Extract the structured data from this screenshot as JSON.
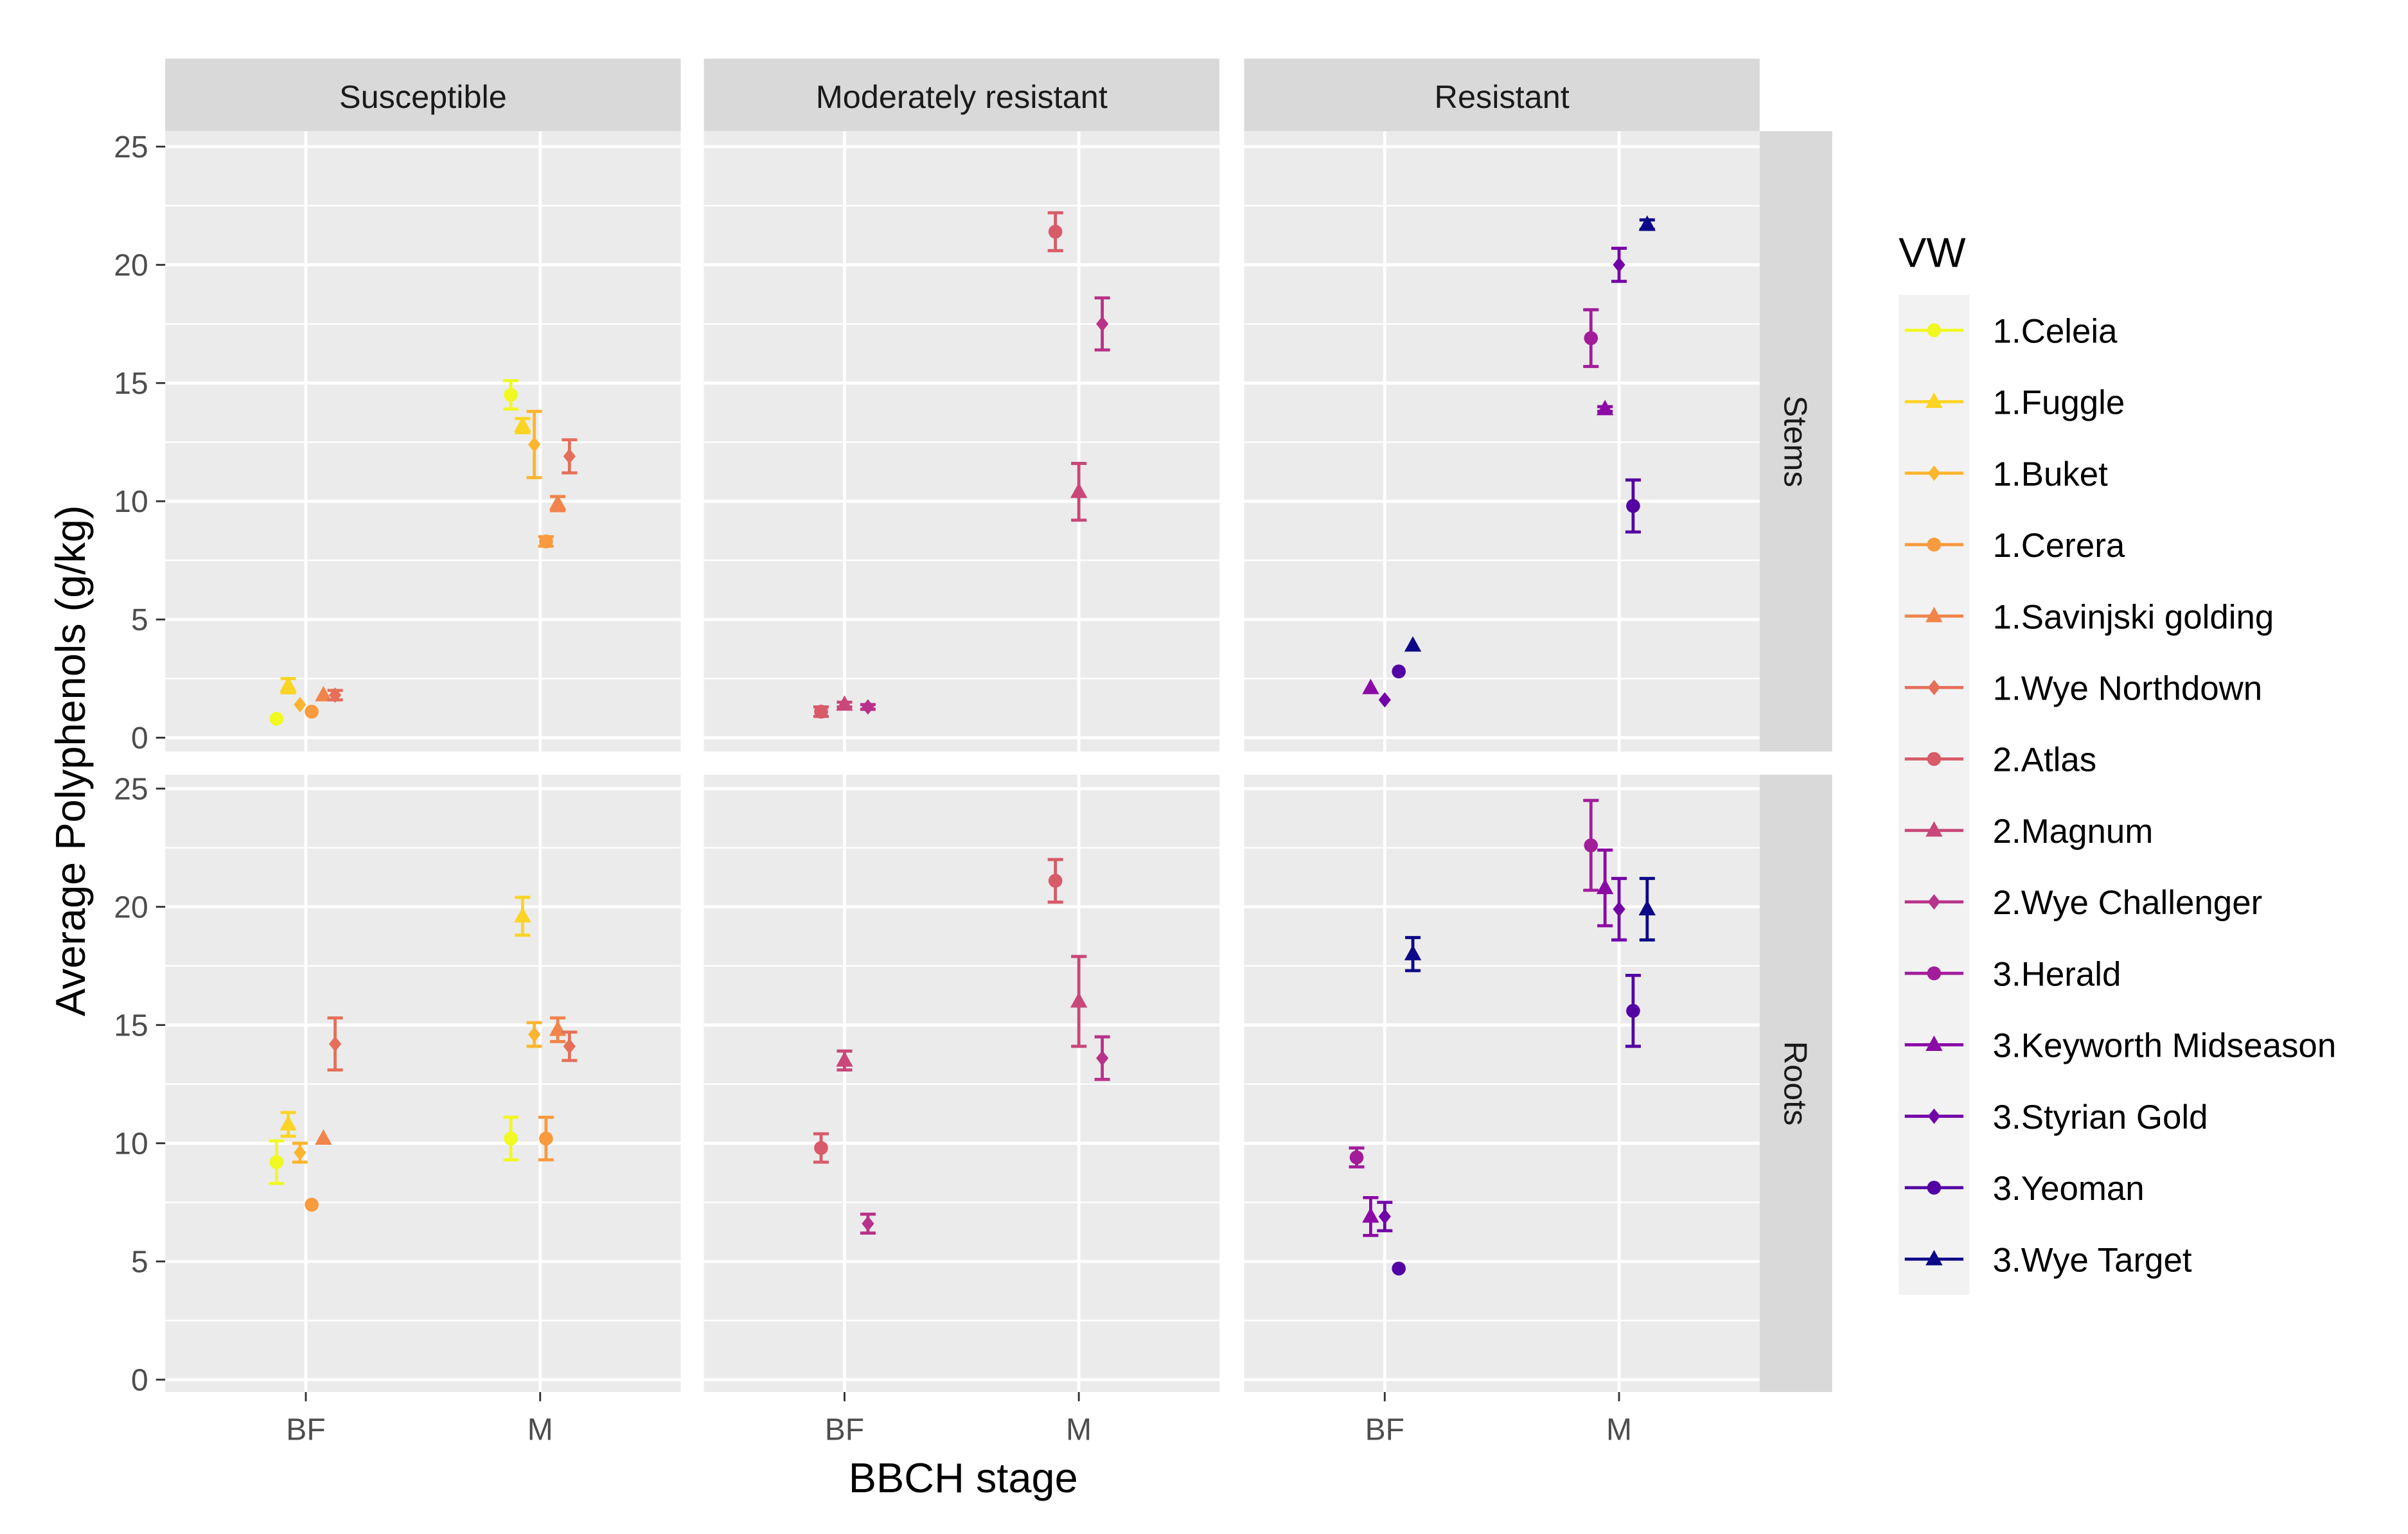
{
  "chart_data": {
    "type": "scatter",
    "xlabel": "BBCH stage",
    "ylabel": "Average Polyphenols (g/kg)",
    "x_categories": [
      "BF",
      "M"
    ],
    "ylim": [
      0,
      25
    ],
    "y_ticks": [
      0,
      5,
      10,
      15,
      20,
      25
    ],
    "grid": true,
    "columns": [
      "Susceptible",
      "Moderately resistant",
      "Resistant"
    ],
    "rows": [
      "Stems",
      "Roots"
    ],
    "legend": {
      "title": "VW",
      "placement": "right"
    },
    "series": [
      {
        "name": "1.Celeia",
        "color": "#F0F921",
        "shape": "circle"
      },
      {
        "name": "1.Fuggle",
        "color": "#FBD424",
        "shape": "triangle"
      },
      {
        "name": "1.Buket",
        "color": "#FDB52E",
        "shape": "diamond"
      },
      {
        "name": "1.Cerera",
        "color": "#F99A3E",
        "shape": "circle"
      },
      {
        "name": "1.Savinjski golding",
        "color": "#F1844B",
        "shape": "triangle"
      },
      {
        "name": "1.Wye Northdown",
        "color": "#E56F5A",
        "shape": "diamond"
      },
      {
        "name": "2.Atlas",
        "color": "#D85B69",
        "shape": "circle"
      },
      {
        "name": "2.Magnum",
        "color": "#C94779",
        "shape": "triangle"
      },
      {
        "name": "2.Wye Challenger",
        "color": "#B83289",
        "shape": "diamond"
      },
      {
        "name": "3.Herald",
        "color": "#A21D9A",
        "shape": "circle"
      },
      {
        "name": "3.Keyworth Midseason",
        "color": "#8B0AA5",
        "shape": "triangle"
      },
      {
        "name": "3.Styrian Gold",
        "color": "#7201A8",
        "shape": "diamond"
      },
      {
        "name": "3.Yeoman",
        "color": "#5302A3",
        "shape": "circle"
      },
      {
        "name": "3.Wye Target",
        "color": "#0D0887",
        "shape": "triangle"
      }
    ],
    "panels": [
      {
        "row": "Stems",
        "column": "Susceptible",
        "series": [
          0,
          1,
          2,
          3,
          4,
          5
        ],
        "points": [
          {
            "s": 0,
            "x": "BF",
            "y": 0.8,
            "err": 0
          },
          {
            "s": 1,
            "x": "BF",
            "y": 2.2,
            "err": 0.3
          },
          {
            "s": 2,
            "x": "BF",
            "y": 1.4,
            "err": 0
          },
          {
            "s": 3,
            "x": "BF",
            "y": 1.1,
            "err": 0
          },
          {
            "s": 4,
            "x": "BF",
            "y": 1.8,
            "err": 0
          },
          {
            "s": 5,
            "x": "BF",
            "y": 1.8,
            "err": 0.2
          },
          {
            "s": 0,
            "x": "M",
            "y": 14.5,
            "err": 0.6
          },
          {
            "s": 1,
            "x": "M",
            "y": 13.2,
            "err": 0.3
          },
          {
            "s": 2,
            "x": "M",
            "y": 12.4,
            "err": 1.4
          },
          {
            "s": 3,
            "x": "M",
            "y": 8.3,
            "err": 0.2
          },
          {
            "s": 4,
            "x": "M",
            "y": 9.9,
            "err": 0.3
          },
          {
            "s": 5,
            "x": "M",
            "y": 11.9,
            "err": 0.7
          }
        ]
      },
      {
        "row": "Stems",
        "column": "Moderately resistant",
        "series": [
          6,
          7,
          8
        ],
        "points": [
          {
            "s": 6,
            "x": "BF",
            "y": 1.1,
            "err": 0.2
          },
          {
            "s": 7,
            "x": "BF",
            "y": 1.4,
            "err": 0.1
          },
          {
            "s": 8,
            "x": "BF",
            "y": 1.3,
            "err": 0.1
          },
          {
            "s": 6,
            "x": "M",
            "y": 21.4,
            "err": 0.8
          },
          {
            "s": 7,
            "x": "M",
            "y": 10.4,
            "err": 1.2
          },
          {
            "s": 8,
            "x": "M",
            "y": 17.5,
            "err": 1.1
          }
        ]
      },
      {
        "row": "Stems",
        "column": "Resistant",
        "series": [
          9,
          10,
          11,
          12,
          13
        ],
        "points": [
          {
            "s": 10,
            "x": "BF",
            "y": 2.1,
            "err": 0
          },
          {
            "s": 11,
            "x": "BF",
            "y": 1.6,
            "err": 0
          },
          {
            "s": 12,
            "x": "BF",
            "y": 2.8,
            "err": 0
          },
          {
            "s": 13,
            "x": "BF",
            "y": 3.9,
            "err": 0
          },
          {
            "s": 9,
            "x": "M",
            "y": 16.9,
            "err": 1.2
          },
          {
            "s": 10,
            "x": "M",
            "y": 13.9,
            "err": 0.1
          },
          {
            "s": 11,
            "x": "M",
            "y": 20.0,
            "err": 0.7
          },
          {
            "s": 12,
            "x": "M",
            "y": 9.8,
            "err": 1.1
          },
          {
            "s": 13,
            "x": "M",
            "y": 21.7,
            "err": 0.2
          }
        ]
      },
      {
        "row": "Roots",
        "column": "Susceptible",
        "series": [
          0,
          1,
          2,
          3,
          4,
          5
        ],
        "points": [
          {
            "s": 0,
            "x": "BF",
            "y": 9.2,
            "err": 0.9
          },
          {
            "s": 1,
            "x": "BF",
            "y": 10.8,
            "err": 0.5
          },
          {
            "s": 2,
            "x": "BF",
            "y": 9.6,
            "err": 0.4
          },
          {
            "s": 3,
            "x": "BF",
            "y": 7.4,
            "err": 0
          },
          {
            "s": 4,
            "x": "BF",
            "y": 10.2,
            "err": 0
          },
          {
            "s": 5,
            "x": "BF",
            "y": 14.2,
            "err": 1.1
          },
          {
            "s": 0,
            "x": "M",
            "y": 10.2,
            "err": 0.9
          },
          {
            "s": 1,
            "x": "M",
            "y": 19.6,
            "err": 0.8
          },
          {
            "s": 2,
            "x": "M",
            "y": 14.6,
            "err": 0.5
          },
          {
            "s": 3,
            "x": "M",
            "y": 10.2,
            "err": 0.9
          },
          {
            "s": 4,
            "x": "M",
            "y": 14.8,
            "err": 0.5
          },
          {
            "s": 5,
            "x": "M",
            "y": 14.1,
            "err": 0.6
          }
        ]
      },
      {
        "row": "Roots",
        "column": "Moderately resistant",
        "series": [
          6,
          7,
          8
        ],
        "points": [
          {
            "s": 6,
            "x": "BF",
            "y": 9.8,
            "err": 0.6
          },
          {
            "s": 7,
            "x": "BF",
            "y": 13.5,
            "err": 0.4
          },
          {
            "s": 8,
            "x": "BF",
            "y": 6.6,
            "err": 0.4
          },
          {
            "s": 6,
            "x": "M",
            "y": 21.1,
            "err": 0.9
          },
          {
            "s": 7,
            "x": "M",
            "y": 16.0,
            "err": 1.9
          },
          {
            "s": 8,
            "x": "M",
            "y": 13.6,
            "err": 0.9
          }
        ]
      },
      {
        "row": "Roots",
        "column": "Resistant",
        "series": [
          9,
          10,
          11,
          12,
          13
        ],
        "points": [
          {
            "s": 9,
            "x": "BF",
            "y": 9.4,
            "err": 0.4
          },
          {
            "s": 10,
            "x": "BF",
            "y": 6.9,
            "err": 0.8
          },
          {
            "s": 11,
            "x": "BF",
            "y": 6.9,
            "err": 0.6
          },
          {
            "s": 12,
            "x": "BF",
            "y": 4.7,
            "err": 0
          },
          {
            "s": 13,
            "x": "BF",
            "y": 18.0,
            "err": 0.7
          },
          {
            "s": 9,
            "x": "M",
            "y": 22.6,
            "err": 1.9
          },
          {
            "s": 10,
            "x": "M",
            "y": 20.8,
            "err": 1.6
          },
          {
            "s": 11,
            "x": "M",
            "y": 19.9,
            "err": 1.3
          },
          {
            "s": 12,
            "x": "M",
            "y": 15.6,
            "err": 1.5
          },
          {
            "s": 13,
            "x": "M",
            "y": 19.9,
            "err": 1.3
          }
        ]
      }
    ]
  }
}
